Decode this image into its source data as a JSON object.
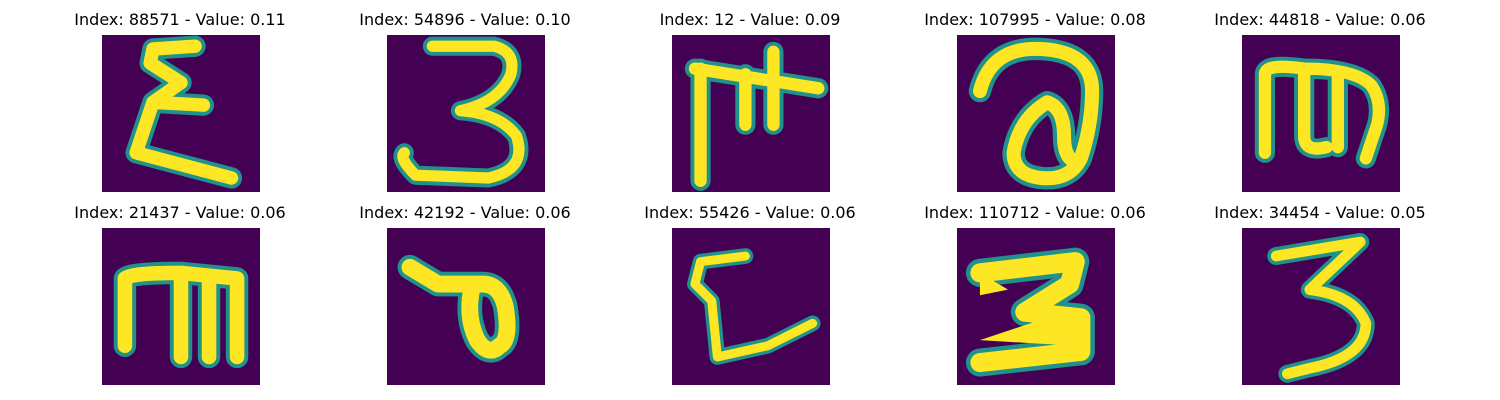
{
  "figure": {
    "panels": [
      {
        "title": "Index: 88571 - Value: 0.11",
        "glyph": "epsilon"
      },
      {
        "title": "Index: 54896 - Value: 0.10",
        "glyph": "three"
      },
      {
        "title": "Index: 12 - Value: 0.09",
        "glyph": "pi-t"
      },
      {
        "title": "Index: 107995 - Value: 0.08",
        "glyph": "loop-a"
      },
      {
        "title": "Index: 44818 - Value: 0.06",
        "glyph": "m-shape"
      },
      {
        "title": "Index: 21437 - Value: 0.06",
        "glyph": "m-shape"
      },
      {
        "title": "Index: 42192 - Value: 0.06",
        "glyph": "loop-seven"
      },
      {
        "title": "Index: 55426 - Value: 0.06",
        "glyph": "bracket-l"
      },
      {
        "title": "Index: 110712 - Value: 0.06",
        "glyph": "z-shape"
      },
      {
        "title": "Index: 34454 - Value: 0.05",
        "glyph": "three-small"
      }
    ]
  },
  "colors": {
    "background": "#440154",
    "stroke": "#fde725",
    "edge": "#21918c"
  }
}
